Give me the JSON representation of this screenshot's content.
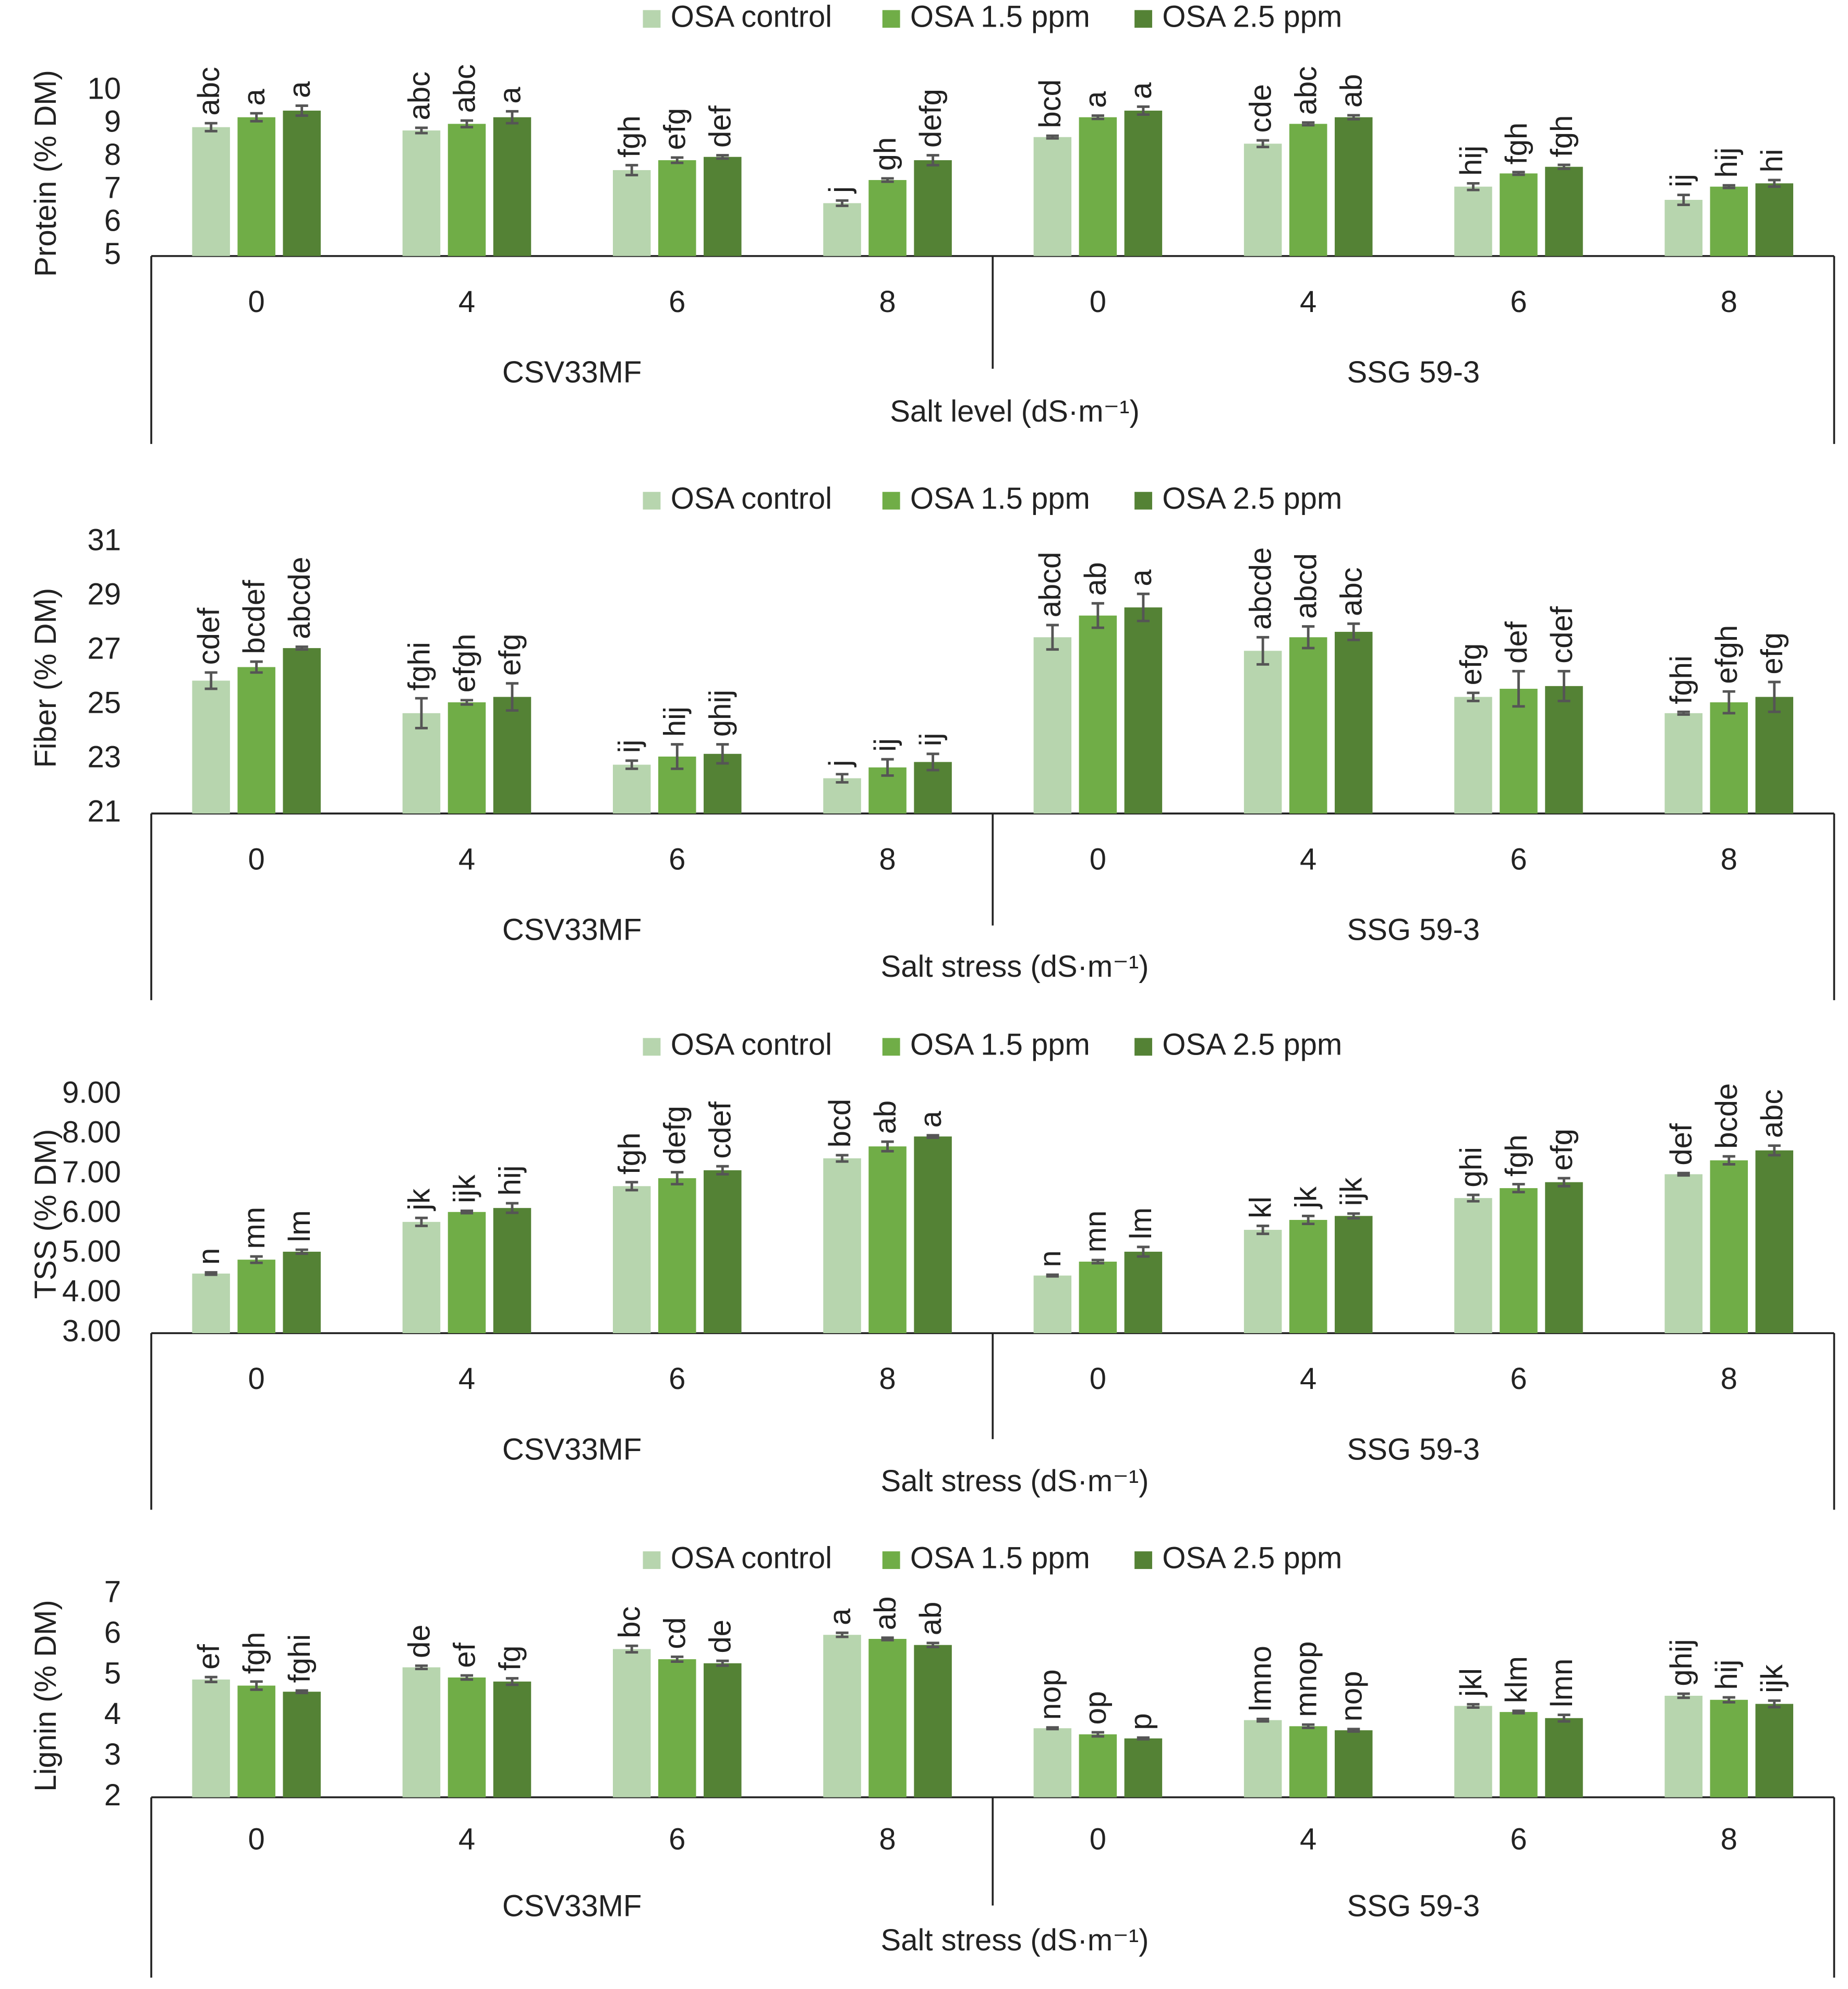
{
  "chart_data": [
    {
      "type": "bar",
      "y_label": "Protein (% DM)",
      "x_label": "Salt level (dS·m⁻¹)",
      "categories": [
        "0",
        "4",
        "6",
        "8",
        "0",
        "4",
        "6",
        "8"
      ],
      "groups": [
        "CSV33MF",
        "SSG 59-3"
      ],
      "ylim": [
        5,
        10
      ],
      "yticks": [
        5,
        6,
        7,
        8,
        9,
        10
      ],
      "series": [
        {
          "name": "OSA control",
          "color": "#b7d5ae",
          "values": [
            8.9,
            8.8,
            7.6,
            6.6,
            8.6,
            8.4,
            7.1,
            6.7
          ],
          "errors": [
            0.12,
            0.08,
            0.15,
            0.08,
            0.04,
            0.1,
            0.1,
            0.15
          ],
          "letters": [
            "abc",
            "abc",
            "fgh",
            "j",
            "bcd",
            "cde",
            "hij",
            "ij"
          ]
        },
        {
          "name": "OSA 1.5 ppm",
          "color": "#70ad47",
          "values": [
            9.2,
            9.0,
            7.9,
            7.3,
            9.2,
            9.0,
            7.5,
            7.1
          ],
          "errors": [
            0.12,
            0.1,
            0.08,
            0.05,
            0.05,
            0.04,
            0.04,
            0.04
          ],
          "letters": [
            "a",
            "abc",
            "efg",
            "gh",
            "a",
            "abc",
            "fgh",
            "hij"
          ]
        },
        {
          "name": "OSA 2.5 ppm",
          "color": "#548235",
          "values": [
            9.4,
            9.2,
            8.0,
            7.9,
            9.4,
            9.2,
            7.7,
            7.2
          ],
          "errors": [
            0.15,
            0.18,
            0.05,
            0.15,
            0.12,
            0.06,
            0.06,
            0.1
          ],
          "letters": [
            "a",
            "a",
            "def",
            "defg",
            "a",
            "ab",
            "fgh",
            "hi"
          ]
        }
      ]
    },
    {
      "type": "bar",
      "y_label": "Fiber (% DM)",
      "x_label": "Salt stress (dS·m⁻¹)",
      "categories": [
        "0",
        "4",
        "6",
        "8",
        "0",
        "4",
        "6",
        "8"
      ],
      "groups": [
        "CSV33MF",
        "SSG 59-3"
      ],
      "ylim": [
        21,
        31
      ],
      "yticks": [
        21,
        23,
        25,
        27,
        29,
        31
      ],
      "series": [
        {
          "name": "OSA control",
          "color": "#b7d5ae",
          "values": [
            25.9,
            24.7,
            22.8,
            22.3,
            27.5,
            27.0,
            25.3,
            24.7
          ],
          "errors": [
            0.3,
            0.55,
            0.15,
            0.15,
            0.45,
            0.5,
            0.15,
            0.05
          ],
          "letters": [
            "cdef",
            "fghi",
            "ij",
            "j",
            "abcd",
            "abcde",
            "efg",
            "fghi"
          ]
        },
        {
          "name": "OSA 1.5 ppm",
          "color": "#70ad47",
          "values": [
            26.4,
            25.1,
            23.1,
            22.7,
            28.3,
            27.5,
            25.6,
            25.1
          ],
          "errors": [
            0.2,
            0.08,
            0.45,
            0.3,
            0.45,
            0.4,
            0.65,
            0.4
          ],
          "letters": [
            "bcdef",
            "efgh",
            "hij",
            "ij",
            "ab",
            "abcd",
            "def",
            "efgh"
          ]
        },
        {
          "name": "OSA 2.5 ppm",
          "color": "#548235",
          "values": [
            27.1,
            25.3,
            23.2,
            22.9,
            28.6,
            27.7,
            25.7,
            25.3
          ],
          "errors": [
            0.05,
            0.5,
            0.35,
            0.3,
            0.5,
            0.3,
            0.55,
            0.55
          ],
          "letters": [
            "abcde",
            "efg",
            "ghij",
            "ij",
            "a",
            "abc",
            "cdef",
            "efg"
          ]
        }
      ]
    },
    {
      "type": "bar",
      "y_label": "TSS (% DM)",
      "x_label": "Salt stress (dS·m⁻¹)",
      "categories": [
        "0",
        "4",
        "6",
        "8",
        "0",
        "4",
        "6",
        "8"
      ],
      "groups": [
        "CSV33MF",
        "SSG 59-3"
      ],
      "ylim": [
        3,
        9
      ],
      "yticks": [
        {
          "value": 3,
          "label": "3.00"
        },
        {
          "value": 4,
          "label": "4.00"
        },
        {
          "value": 5,
          "label": "5.00"
        },
        {
          "value": 6,
          "label": "6.00"
        },
        {
          "value": 7,
          "label": "7.00"
        },
        {
          "value": 8,
          "label": "8.00"
        },
        {
          "value": 9,
          "label": "9.00"
        }
      ],
      "series": [
        {
          "name": "OSA control",
          "color": "#b7d5ae",
          "values": [
            4.5,
            5.8,
            6.7,
            7.4,
            4.45,
            5.6,
            6.4,
            7.0
          ],
          "errors": [
            0.03,
            0.1,
            0.1,
            0.08,
            0.02,
            0.1,
            0.08,
            0.03
          ],
          "letters": [
            "n",
            "jk",
            "fgh",
            "bcd",
            "n",
            "kl",
            "ghi",
            "def"
          ]
        },
        {
          "name": "OSA 1.5 ppm",
          "color": "#70ad47",
          "values": [
            4.85,
            6.05,
            6.9,
            7.7,
            4.8,
            5.85,
            6.65,
            7.35
          ],
          "errors": [
            0.08,
            0.03,
            0.15,
            0.12,
            0.04,
            0.1,
            0.1,
            0.1
          ],
          "letters": [
            "mn",
            "ijk",
            "defg",
            "ab",
            "mn",
            "jk",
            "fgh",
            "bcde"
          ]
        },
        {
          "name": "OSA 2.5 ppm",
          "color": "#548235",
          "values": [
            5.05,
            6.15,
            7.1,
            7.95,
            5.05,
            5.95,
            6.8,
            7.6
          ],
          "errors": [
            0.05,
            0.12,
            0.1,
            0.03,
            0.12,
            0.06,
            0.1,
            0.12
          ],
          "letters": [
            "lm",
            "hij",
            "cdef",
            "a",
            "lm",
            "ijk",
            "efg",
            "abc"
          ]
        }
      ]
    },
    {
      "type": "bar",
      "y_label": "Lignin (% DM)",
      "x_label": "Salt stress (dS·m⁻¹)",
      "categories": [
        "0",
        "4",
        "6",
        "8",
        "0",
        "4",
        "6",
        "8"
      ],
      "groups": [
        "CSV33MF",
        "SSG 59-3"
      ],
      "ylim": [
        2,
        7
      ],
      "yticks": [
        2,
        3,
        4,
        5,
        6,
        7
      ],
      "series": [
        {
          "name": "OSA control",
          "color": "#b7d5ae",
          "values": [
            4.9,
            5.2,
            5.65,
            6.0,
            3.7,
            3.9,
            4.25,
            4.5
          ],
          "errors": [
            0.06,
            0.04,
            0.08,
            0.05,
            0.02,
            0.03,
            0.04,
            0.05
          ],
          "letters": [
            "ef",
            "de",
            "bc",
            "a",
            "nop",
            "lmno",
            "jkl",
            "ghij"
          ]
        },
        {
          "name": "OSA 1.5 ppm",
          "color": "#70ad47",
          "values": [
            4.75,
            4.95,
            5.4,
            5.9,
            3.55,
            3.75,
            4.1,
            4.4
          ],
          "errors": [
            0.1,
            0.05,
            0.06,
            0.03,
            0.05,
            0.04,
            0.03,
            0.06
          ],
          "letters": [
            "fgh",
            "ef",
            "cd",
            "ab",
            "op",
            "mnop",
            "klm",
            "hij"
          ]
        },
        {
          "name": "OSA 2.5 ppm",
          "color": "#548235",
          "values": [
            4.6,
            4.85,
            5.3,
            5.75,
            3.45,
            3.65,
            3.95,
            4.3
          ],
          "errors": [
            0.03,
            0.08,
            0.06,
            0.05,
            0.02,
            0.03,
            0.08,
            0.08
          ],
          "letters": [
            "fghi",
            "fg",
            "de",
            "ab",
            "p",
            "nop",
            "lmn",
            "ijk"
          ]
        }
      ]
    }
  ]
}
